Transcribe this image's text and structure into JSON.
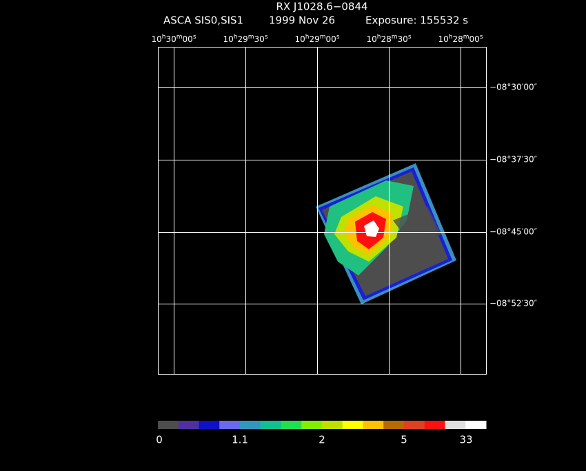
{
  "header": {
    "title": "RX J1028.6−0844",
    "instrument": "ASCA SIS0,SIS1",
    "date": "1999 Nov 26",
    "exposure": "Exposure: 155532 s"
  },
  "ra_labels": [
    [
      "10",
      "h",
      "30",
      "m",
      "00",
      "s"
    ],
    [
      "10",
      "h",
      "29",
      "m",
      "30",
      "s"
    ],
    [
      "10",
      "h",
      "29",
      "m",
      "00",
      "s"
    ],
    [
      "10",
      "h",
      "28",
      "m",
      "30",
      "s"
    ],
    [
      "10",
      "h",
      "28",
      "m",
      "00",
      "s"
    ]
  ],
  "dec_labels": [
    "−08°30′00″",
    "−08°37′30″",
    "−08°45′00″",
    "−08°52′30″"
  ],
  "colorbar": {
    "colors": [
      "#4d4d4d",
      "#5030a0",
      "#1010c8",
      "#6a6af0",
      "#3098c0",
      "#10c090",
      "#20e050",
      "#80f000",
      "#c0e000",
      "#ffff00",
      "#ffc000",
      "#b86a00",
      "#e04020",
      "#ff1010",
      "#e0e0e0",
      "#ffffff"
    ],
    "labels": [
      "0",
      "1.1",
      "2",
      "5",
      "33"
    ]
  }
}
